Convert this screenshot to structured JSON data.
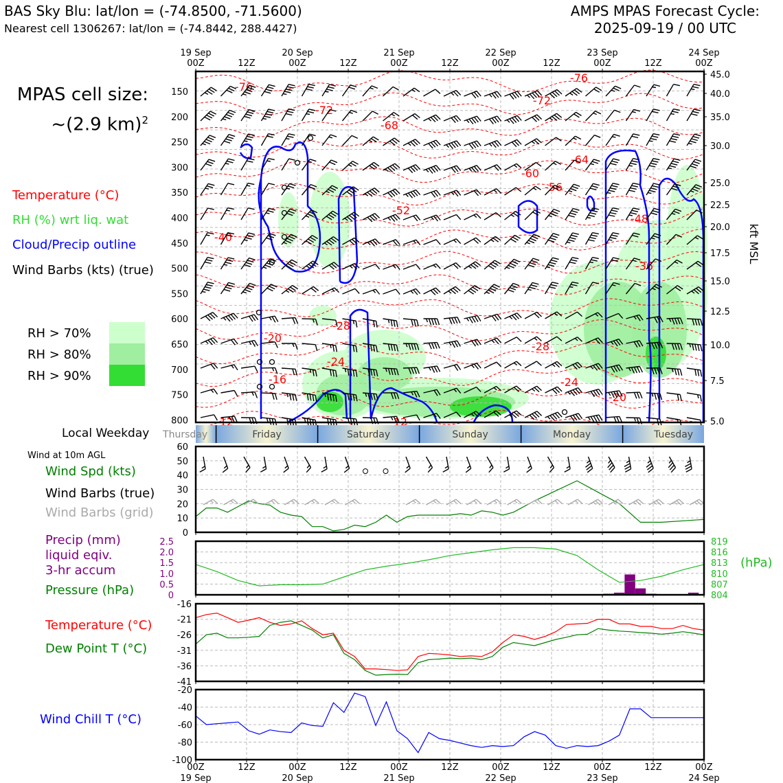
{
  "header": {
    "title_left": "BAS Sky Blu: lat/lon = (-74.8500, -71.5600)",
    "subtitle_left": "Nearest cell 1306267: lat/lon = (-74.8442, 288.4427)",
    "title_right_line1": "AMPS MPAS Forecast Cycle:",
    "title_right_line2": "2025-09-19 / 00 UTC"
  },
  "cell_size": {
    "line1": "MPAS cell size:",
    "line2": "~(2.9 km)",
    "sup": "2"
  },
  "legend": {
    "temperature": "Temperature (°C)",
    "rh": "RH (%) wrt liq. wat",
    "cloud": "Cloud/Precip outline",
    "wind": "Wind Barbs (kts) (true)",
    "rh70": "RH > 70%",
    "rh80": "RH > 80%",
    "rh90": "RH > 90%"
  },
  "colors": {
    "temperature": "#ff0000",
    "rh_legend_text": "#33dd33",
    "cloud": "#0000ff",
    "rh70": "#ccffcc",
    "rh80": "#a0eea0",
    "rh90": "#33dd33",
    "pressure": "#22bb22",
    "precip": "#800080",
    "dewpoint": "#008000",
    "windchill": "#0000ff",
    "grid_barbs": "#aaaaaa"
  },
  "chart_data": [
    {
      "type": "cross-section",
      "title": "Vertical profile",
      "x_top_ticks": [
        "19 Sep\n00Z",
        "12Z",
        "20 Sep\n00Z",
        "12Z",
        "21 Sep\n00Z",
        "12Z",
        "22 Sep\n00Z",
        "12Z",
        "23 Sep\n00Z",
        "12Z",
        "24 Sep\n00Z"
      ],
      "y_left_label_ticks": [
        "150",
        "200",
        "250",
        "300",
        "350",
        "400",
        "450",
        "500",
        "550",
        "600",
        "650",
        "700",
        "750",
        "800"
      ],
      "y_right_label": "kft MSL",
      "y_right_ticks": [
        "45.0",
        "40.0",
        "35.0",
        "30.0",
        "25.0",
        "22.5",
        "20.0",
        "17.5",
        "15.0",
        "12.5",
        "10.0",
        "7.5",
        "5.0"
      ],
      "temperature_contour_labels": [
        "-76",
        "-72",
        "-68",
        "-60",
        "-56",
        "-64",
        "-76",
        "-72",
        "-52",
        "-48",
        "-36",
        "-40",
        "-28",
        "-28",
        "-24",
        "-20",
        "-16",
        "-24",
        "-20",
        "-12",
        "-12"
      ]
    },
    {
      "type": "band",
      "label": "Local Weekday",
      "days": [
        "Thursday",
        "Friday",
        "Saturday",
        "Sunday",
        "Monday",
        "Tuesday"
      ]
    },
    {
      "type": "line",
      "title": "Wind at 10m AGL",
      "labels": [
        "Wind Spd (kts)",
        "Wind Barbs (true)",
        "Wind Barbs (grid)"
      ],
      "ylim": [
        0,
        60
      ],
      "yticks": [
        "0",
        "10",
        "20",
        "30",
        "40",
        "50",
        "60"
      ],
      "x_hours": [
        0,
        6,
        12,
        18,
        24,
        30,
        36,
        42,
        48,
        54,
        60,
        66,
        72,
        78,
        84,
        90,
        96,
        102,
        108,
        114,
        120,
        126,
        132,
        138,
        144
      ],
      "wind_speed": [
        11,
        17,
        17,
        14,
        18,
        22,
        20,
        19,
        14,
        12,
        11,
        4,
        4,
        1,
        2,
        5,
        4,
        7,
        12,
        7,
        11,
        12,
        12,
        12,
        12,
        13,
        12,
        15,
        14,
        12,
        14,
        22,
        29,
        36,
        28,
        20,
        7,
        7,
        9
      ],
      "wind_speed_hours": [
        0,
        3,
        6,
        9,
        12,
        15,
        18,
        21,
        24,
        27,
        30,
        33,
        36,
        39,
        42,
        45,
        48,
        51,
        54,
        57,
        60,
        63,
        66,
        69,
        72,
        75,
        78,
        81,
        84,
        87,
        90,
        96,
        102,
        108,
        114,
        120,
        126,
        132,
        144
      ]
    },
    {
      "type": "bar+line",
      "labels": [
        "Precip (mm)",
        "liquid eqiv.",
        "3-hr accum",
        "Pressure (hPa)"
      ],
      "precip_ylim": [
        0,
        2.5
      ],
      "precip_yticks": [
        "0",
        "0.5",
        "1.0",
        "1.5",
        "2.0",
        "2.5"
      ],
      "pressure_ylim": [
        804,
        819
      ],
      "pressure_yticks": [
        "804",
        "807",
        "810",
        "813",
        "816",
        "819"
      ],
      "pressure_unit": "(hPa)",
      "precip_hours": [
        117,
        120,
        123,
        126,
        129,
        132,
        135,
        138,
        141,
        144
      ],
      "precip_values": [
        0.05,
        0.1,
        0.95,
        0.3,
        0.05,
        0,
        0,
        0,
        0.1,
        0
      ],
      "pressure_hours": [
        0,
        6,
        12,
        18,
        24,
        30,
        36,
        42,
        48,
        54,
        60,
        66,
        72,
        78,
        84,
        90,
        96,
        102,
        108,
        114,
        120,
        126,
        132,
        138,
        144
      ],
      "pressure_values": [
        812.5,
        810.5,
        808,
        806.5,
        806.8,
        806.8,
        807,
        809,
        811,
        812,
        812.8,
        813.8,
        815,
        815.8,
        816.6,
        817.2,
        817.2,
        816.8,
        815,
        811,
        807.5,
        808,
        809.2,
        811,
        812.5
      ]
    },
    {
      "type": "line",
      "labels": [
        "Temperature (°C)",
        "Dew Point T (°C)"
      ],
      "ylim": [
        -41,
        -16
      ],
      "yticks": [
        "-16",
        "-21",
        "-26",
        "-31",
        "-36",
        "-41"
      ],
      "x_hours": [
        0,
        3,
        6,
        9,
        12,
        15,
        18,
        21,
        24,
        27,
        30,
        33,
        36,
        39,
        42,
        45,
        48,
        51,
        54,
        57,
        60,
        63,
        66,
        69,
        72,
        75,
        78,
        81,
        84,
        87,
        90,
        93,
        96,
        99,
        102,
        105,
        108,
        111,
        114,
        117,
        120,
        123,
        126,
        129,
        132,
        135,
        138,
        141,
        144
      ],
      "temperature": [
        -20.5,
        -19.5,
        -19,
        -20.5,
        -22,
        -21.3,
        -20.5,
        -22,
        -23,
        -22.5,
        -21.5,
        -24,
        -26,
        -25.5,
        -31,
        -33,
        -37,
        -37,
        -37.2,
        -37.5,
        -37.3,
        -33,
        -32,
        -32.2,
        -32.5,
        -33,
        -32.8,
        -33,
        -31.5,
        -28.5,
        -26,
        -26.5,
        -27.5,
        -26.5,
        -25,
        -22.7,
        -22.5,
        -22.3,
        -21,
        -21,
        -22.5,
        -22.5,
        -23.3,
        -23.3,
        -24,
        -24,
        -23,
        -24,
        -24.5
      ],
      "dewpoint": [
        -29,
        -26,
        -25.5,
        -27,
        -27,
        -26.8,
        -26.5,
        -23,
        -22,
        -21.5,
        -23,
        -24.5,
        -27,
        -26,
        -32,
        -34,
        -37.5,
        -39,
        -38.8,
        -38.7,
        -38.8,
        -35,
        -34,
        -33.8,
        -33.5,
        -33.7,
        -33.5,
        -34,
        -33,
        -30,
        -28.5,
        -29,
        -29.5,
        -28.5,
        -27.5,
        -26.8,
        -26,
        -25.8,
        -24,
        -24.5,
        -24.8,
        -25,
        -25.3,
        -25.5,
        -25.8,
        -25.5,
        -25,
        -25.5,
        -26
      ]
    },
    {
      "type": "line",
      "labels": [
        "Wind Chill T (°C)"
      ],
      "ylim": [
        -100,
        -20
      ],
      "yticks": [
        "-20",
        "-40",
        "-60",
        "-80",
        "-100"
      ],
      "x_hours": [
        0,
        3,
        6,
        9,
        12,
        15,
        18,
        21,
        24,
        27,
        30,
        33,
        36,
        39,
        42,
        45,
        48,
        51,
        54,
        57,
        60,
        63,
        66,
        69,
        72,
        75,
        78,
        81,
        84,
        87,
        90,
        93,
        96,
        99,
        102,
        105,
        108,
        111,
        114,
        117,
        120,
        123,
        126,
        129,
        132,
        135,
        138,
        141,
        144
      ],
      "windchill": [
        -50,
        -60,
        -59,
        -58,
        -57,
        -67,
        -71,
        -66,
        -68,
        -69,
        -58,
        -61,
        -62,
        -35,
        -46,
        -24,
        -28,
        -61,
        -34,
        -67,
        -76,
        -92,
        -69,
        -76,
        -78,
        -81,
        -84,
        -86,
        -84,
        -85,
        -84,
        -74,
        -68,
        -72,
        -84,
        -87,
        -84,
        -85,
        -84,
        -79,
        -72,
        -42,
        -42,
        -52,
        -52,
        -52,
        -52,
        -52,
        -52
      ]
    }
  ],
  "bottom_axis_ticks": [
    "00Z\n19 Sep",
    "12Z",
    "00Z\n20 Sep",
    "12Z",
    "00Z\n21 Sep",
    "12Z",
    "00Z\n22 Sep",
    "12Z",
    "00Z\n23 Sep",
    "12Z",
    "00Z\n24 Sep"
  ],
  "panel_labels": {
    "weekday": "Local Weekday",
    "wind10m": "Wind at 10m AGL"
  }
}
